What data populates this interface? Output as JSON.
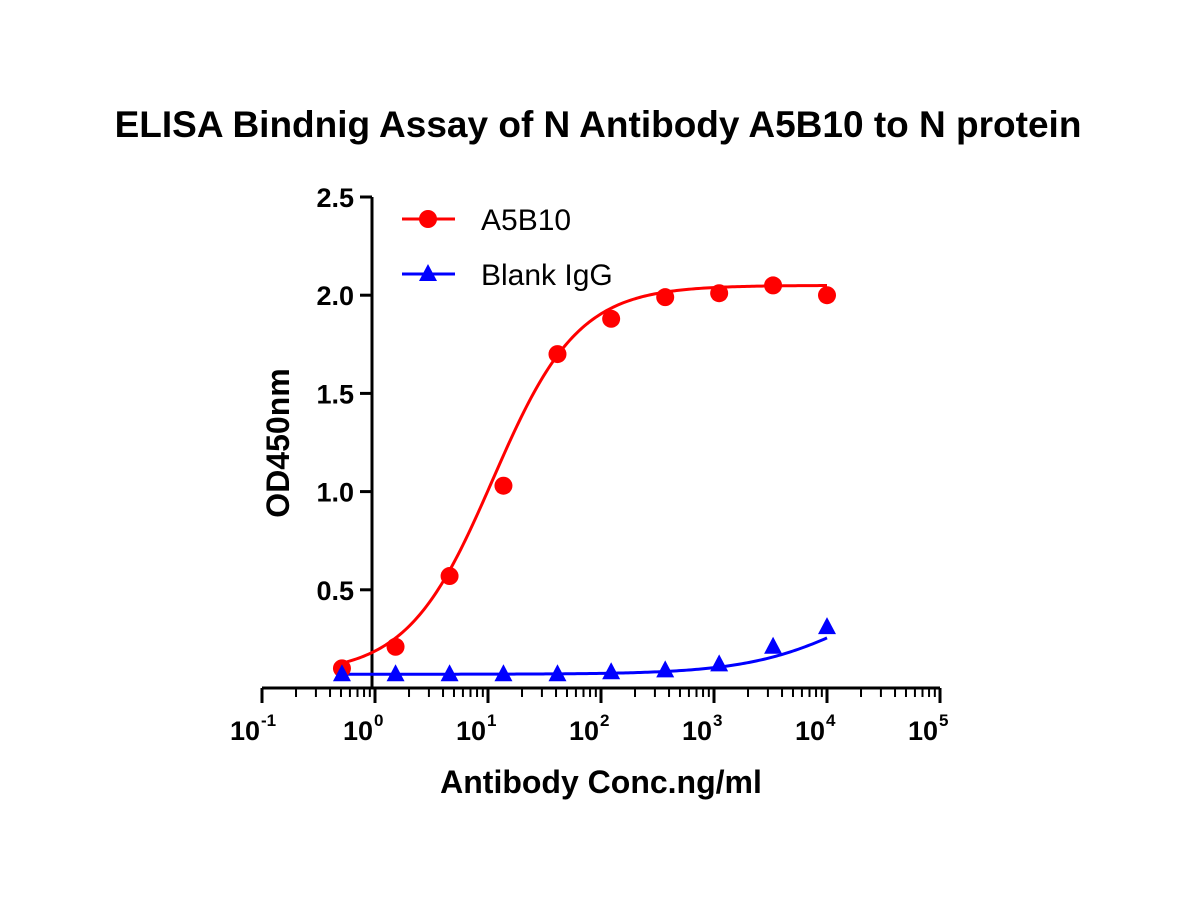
{
  "chart_data": {
    "type": "line",
    "title": "ELISA Bindnig Assay of N Antibody A5B10 to N protein",
    "xlabel": "Antibody Conc.ng/ml",
    "ylabel": "OD450nm",
    "x_scale": "log10",
    "xlim": [
      0.1,
      100000
    ],
    "ylim": [
      0,
      2.5
    ],
    "x_ticks": [
      {
        "base": "10",
        "exp": "-1",
        "value": 0.1
      },
      {
        "base": "10",
        "exp": "0",
        "value": 1
      },
      {
        "base": "10",
        "exp": "1",
        "value": 10
      },
      {
        "base": "10",
        "exp": "2",
        "value": 100
      },
      {
        "base": "10",
        "exp": "3",
        "value": 1000
      },
      {
        "base": "10",
        "exp": "4",
        "value": 10000
      },
      {
        "base": "10",
        "exp": "5",
        "value": 100000
      }
    ],
    "y_ticks": [
      {
        "label": "0.5",
        "value": 0.5
      },
      {
        "label": "1.0",
        "value": 1.0
      },
      {
        "label": "1.5",
        "value": 1.5
      },
      {
        "label": "2.0",
        "value": 2.0
      },
      {
        "label": "2.5",
        "value": 2.5
      }
    ],
    "grid": false,
    "legend_position": "top-left",
    "series": [
      {
        "name": "A5B10",
        "color": "#ff0000",
        "marker": "circle",
        "x": [
          0.51,
          1.52,
          4.57,
          13.7,
          41.2,
          123,
          370,
          1111,
          3333,
          10000
        ],
        "y": [
          0.1,
          0.21,
          0.57,
          1.03,
          1.7,
          1.88,
          1.99,
          2.01,
          2.05,
          2.0
        ],
        "fit": {
          "bottom": 0.07,
          "top": 2.05,
          "ec50": 11,
          "hill": 1.15
        }
      },
      {
        "name": "Blank IgG",
        "color": "#0000ff",
        "marker": "triangle",
        "x": [
          0.51,
          1.52,
          4.57,
          13.7,
          41.2,
          123,
          370,
          1111,
          3333,
          10000
        ],
        "y": [
          0.07,
          0.07,
          0.07,
          0.07,
          0.07,
          0.08,
          0.09,
          0.12,
          0.21,
          0.31
        ],
        "fit": {
          "bottom": 0.07,
          "top": 0.6,
          "ec50": 20000,
          "hill": 0.9
        }
      }
    ]
  }
}
